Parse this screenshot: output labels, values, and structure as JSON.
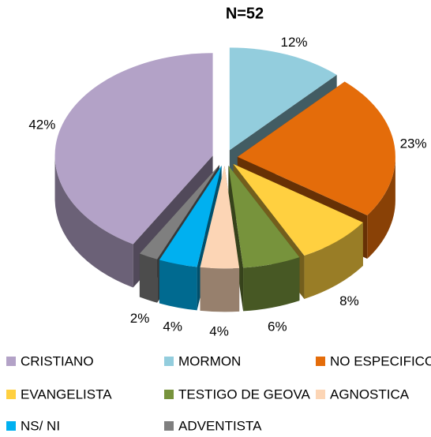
{
  "chart_data": {
    "type": "pie",
    "title": "N=52",
    "categories": [
      "CRISTIANO",
      "MORMON",
      "NO ESPECIFICO",
      "EVANGELISTA",
      "TESTIGO DE GEOVA",
      "AGNOSTICA",
      "NS/ NI",
      "ADVENTISTA"
    ],
    "values": [
      42,
      12,
      23,
      8,
      6,
      4,
      4,
      2
    ],
    "value_labels": [
      "42%",
      "12%",
      "23%",
      "8%",
      "6%",
      "4%",
      "4%",
      "2%"
    ],
    "colors": [
      "#b3a2c7",
      "#93cddd",
      "#e46c0a",
      "#ffd040",
      "#77933c",
      "#fcd5b5",
      "#00b0f0",
      "#7f7f7f"
    ],
    "legend": "bottom"
  }
}
